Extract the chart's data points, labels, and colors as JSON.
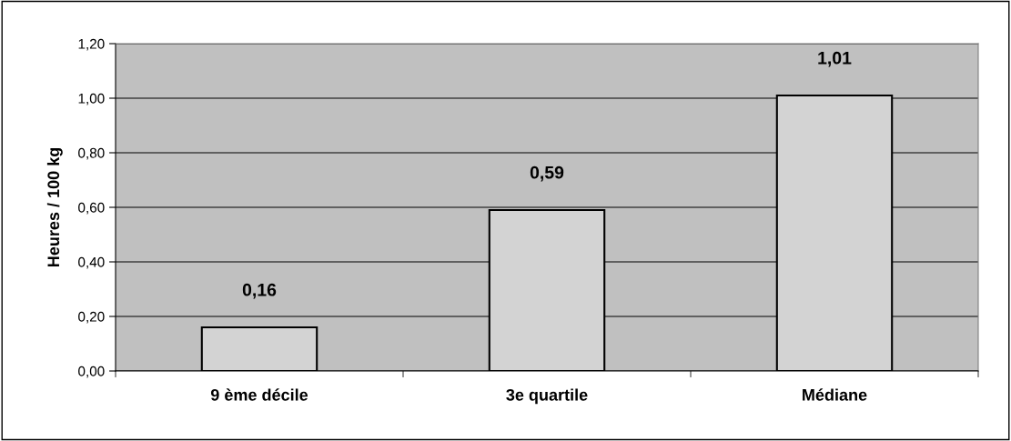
{
  "chart_data": {
    "type": "bar",
    "ylabel": "Heures / 100 kg",
    "categories": [
      "9 ème décile",
      "3e quartile",
      "Médiane"
    ],
    "values": [
      0.16,
      0.59,
      1.01
    ],
    "value_labels": [
      "0,16",
      "0,59",
      "1,01"
    ],
    "color": "#d3d3d3",
    "ylim": [
      0,
      1.2
    ],
    "yticks": [
      {
        "value": 0,
        "label": "0,00"
      },
      {
        "value": 0.2,
        "label": "0,20"
      },
      {
        "value": 0.4,
        "label": "0,40"
      },
      {
        "value": 0.6,
        "label": "0,60"
      },
      {
        "value": 0.8,
        "label": "0,80"
      },
      {
        "value": 1.0,
        "label": "1,00"
      },
      {
        "value": 1.2,
        "label": "1,20"
      }
    ],
    "grid": "y",
    "legend": false
  }
}
